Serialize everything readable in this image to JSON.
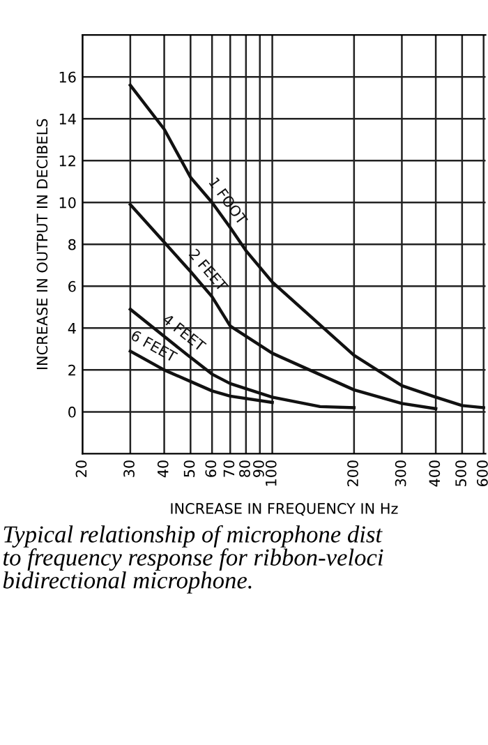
{
  "chart_data": {
    "type": "line",
    "xlabel": "INCREASE IN FREQUENCY IN Hz",
    "ylabel": "INCREASE IN OUTPUT IN DECIBELS",
    "log": "x",
    "xlim": [
      20,
      610
    ],
    "ylim": [
      -2,
      18
    ],
    "xticks": [
      20,
      30,
      40,
      50,
      60,
      70,
      80,
      90,
      100,
      200,
      300,
      400,
      500,
      600
    ],
    "yticks": [
      0,
      2,
      4,
      6,
      8,
      10,
      12,
      14,
      16
    ],
    "grid": true,
    "legend": false,
    "marker": "none",
    "line_style": "solid",
    "series": [
      {
        "name": "1 FOOT",
        "color": "#111111",
        "x": [
          30,
          40,
          50,
          60,
          70,
          80,
          100,
          200,
          300,
          400,
          500,
          600
        ],
        "values": [
          15.6,
          13.5,
          11.2,
          10.0,
          8.8,
          7.7,
          6.2,
          2.7,
          1.25,
          0.7,
          0.3,
          0.2
        ]
      },
      {
        "name": "2 FEET",
        "color": "#111111",
        "x": [
          30,
          40,
          50,
          60,
          70,
          100,
          200,
          300,
          400
        ],
        "values": [
          9.9,
          8.1,
          6.7,
          5.5,
          4.1,
          2.8,
          1.05,
          0.4,
          0.15
        ]
      },
      {
        "name": "4 FEET",
        "color": "#111111",
        "x": [
          30,
          40,
          50,
          60,
          70,
          100,
          150,
          200
        ],
        "values": [
          4.9,
          3.6,
          2.6,
          1.8,
          1.35,
          0.7,
          0.25,
          0.2
        ]
      },
      {
        "name": "6 FEET",
        "color": "#111111",
        "x": [
          30,
          40,
          50,
          60,
          70,
          100
        ],
        "values": [
          2.9,
          2.0,
          1.45,
          1.0,
          0.75,
          0.45
        ]
      }
    ],
    "annotations": [
      "Typical relationship of microphone dist\nto frequency response for ribbon-veloci\nbidirectional microphone."
    ]
  }
}
